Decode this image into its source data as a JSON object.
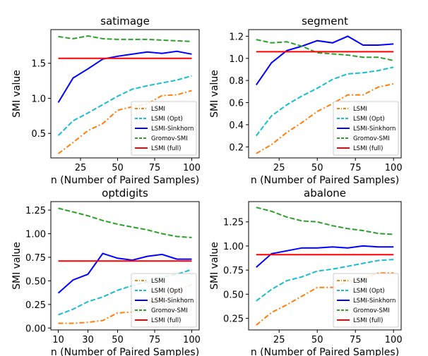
{
  "colors": {
    "LSMI": "#ff7f0e",
    "LSMI (Opt)": "#17becf",
    "LSMI-Sinkhorn": "#0000ff",
    "Gromov-SMI": "#2ca02c",
    "LSMI (full)": "#ff0000"
  },
  "chart_data": [
    {
      "type": "line",
      "title": "satimage",
      "xlabel": "n (Number of Paired Samples)",
      "ylabel": "SMI value",
      "xlim": [
        5,
        105
      ],
      "ylim": [
        0.15,
        1.98
      ],
      "xticks": [
        25,
        50,
        75,
        100
      ],
      "yticks": [
        0.5,
        1.0,
        1.5
      ],
      "ytick_labels": [
        "0.5",
        "1.0",
        "1.5"
      ],
      "x": [
        10,
        20,
        30,
        40,
        50,
        60,
        70,
        80,
        90,
        100
      ],
      "legend": "lower-right",
      "series": [
        {
          "name": "LSMI",
          "style": "dashdot",
          "values": [
            0.21,
            0.37,
            0.54,
            0.64,
            0.83,
            0.88,
            0.92,
            1.04,
            1.05,
            1.11
          ]
        },
        {
          "name": "LSMI (Opt)",
          "style": "dashed",
          "values": [
            0.47,
            0.68,
            0.79,
            0.91,
            1.03,
            1.13,
            1.18,
            1.22,
            1.26,
            1.32
          ]
        },
        {
          "name": "LSMI-Sinkhorn",
          "style": "solid",
          "values": [
            0.94,
            1.29,
            1.42,
            1.56,
            1.6,
            1.63,
            1.66,
            1.64,
            1.67,
            1.63
          ]
        },
        {
          "name": "Gromov-SMI",
          "style": "dashed",
          "values": [
            1.88,
            1.85,
            1.89,
            1.85,
            1.84,
            1.84,
            1.84,
            1.83,
            1.82,
            1.81
          ]
        },
        {
          "name": "LSMI (full)",
          "style": "solid",
          "values": [
            1.57,
            1.57,
            1.57,
            1.57,
            1.57,
            1.57,
            1.57,
            1.57,
            1.57,
            1.57
          ]
        }
      ]
    },
    {
      "type": "line",
      "title": "segment",
      "xlabel": "n (Number of Paired Samples)",
      "ylabel": "SMI value",
      "xlim": [
        5,
        105
      ],
      "ylim": [
        0.1,
        1.26
      ],
      "xticks": [
        25,
        50,
        75,
        100
      ],
      "yticks": [
        0.2,
        0.4,
        0.6,
        0.8,
        1.0,
        1.2
      ],
      "ytick_labels": [
        "0.2",
        "0.4",
        "0.6",
        "0.8",
        "1.0",
        "1.2"
      ],
      "x": [
        10,
        20,
        30,
        40,
        50,
        60,
        70,
        80,
        90,
        100
      ],
      "legend": "lower-right",
      "series": [
        {
          "name": "LSMI",
          "style": "dashdot",
          "values": [
            0.14,
            0.22,
            0.33,
            0.42,
            0.52,
            0.59,
            0.67,
            0.67,
            0.74,
            0.77
          ]
        },
        {
          "name": "LSMI (Opt)",
          "style": "dashed",
          "values": [
            0.3,
            0.48,
            0.58,
            0.66,
            0.73,
            0.81,
            0.86,
            0.87,
            0.89,
            0.92
          ]
        },
        {
          "name": "LSMI-Sinkhorn",
          "style": "solid",
          "values": [
            0.76,
            0.96,
            1.07,
            1.11,
            1.16,
            1.14,
            1.2,
            1.12,
            1.12,
            1.13
          ]
        },
        {
          "name": "Gromov-SMI",
          "style": "dashed",
          "values": [
            1.17,
            1.14,
            1.15,
            1.11,
            1.05,
            1.04,
            1.03,
            1.01,
            1.01,
            0.98
          ]
        },
        {
          "name": "LSMI (full)",
          "style": "solid",
          "values": [
            1.06,
            1.06,
            1.06,
            1.06,
            1.06,
            1.06,
            1.06,
            1.06,
            1.06,
            1.06
          ]
        }
      ]
    },
    {
      "type": "line",
      "title": "optdigits",
      "xlabel": "n (Number of Paired Samples)",
      "ylabel": "SMI value",
      "xlim": [
        5,
        105
      ],
      "ylim": [
        -0.02,
        1.34
      ],
      "xticks": [
        10,
        30,
        50,
        75,
        100
      ],
      "yticks": [
        0.0,
        0.25,
        0.5,
        0.75,
        1.0,
        1.25
      ],
      "ytick_labels": [
        "0.00",
        "0.25",
        "0.50",
        "0.75",
        "1.00",
        "1.25"
      ],
      "x": [
        10,
        20,
        30,
        40,
        50,
        60,
        70,
        80,
        90,
        100
      ],
      "legend": "lower-right",
      "series": [
        {
          "name": "LSMI",
          "style": "dashdot",
          "values": [
            0.05,
            0.05,
            0.06,
            0.08,
            0.16,
            0.17,
            0.26,
            0.33,
            0.4,
            0.46
          ]
        },
        {
          "name": "LSMI (Opt)",
          "style": "dashed",
          "values": [
            0.14,
            0.2,
            0.28,
            0.33,
            0.4,
            0.45,
            0.49,
            0.54,
            0.57,
            0.62
          ]
        },
        {
          "name": "LSMI-Sinkhorn",
          "style": "solid",
          "values": [
            0.37,
            0.51,
            0.57,
            0.79,
            0.74,
            0.72,
            0.76,
            0.78,
            0.73,
            0.73
          ]
        },
        {
          "name": "Gromov-SMI",
          "style": "dashed",
          "values": [
            1.27,
            1.23,
            1.19,
            1.14,
            1.1,
            1.07,
            1.04,
            1.0,
            0.97,
            0.96
          ]
        },
        {
          "name": "LSMI (full)",
          "style": "solid",
          "values": [
            0.71,
            0.71,
            0.71,
            0.71,
            0.71,
            0.71,
            0.71,
            0.71,
            0.71,
            0.71
          ]
        }
      ]
    },
    {
      "type": "line",
      "title": "abalone",
      "xlabel": "n (Number of Paired Samples)",
      "ylabel": "SMI value",
      "xlim": [
        5,
        105
      ],
      "ylim": [
        0.13,
        1.46
      ],
      "xticks": [
        25,
        50,
        75,
        100
      ],
      "yticks": [
        0.25,
        0.5,
        0.75,
        1.0,
        1.25
      ],
      "ytick_labels": [
        "0.25",
        "0.50",
        "0.75",
        "1.00",
        "1.25"
      ],
      "x": [
        10,
        20,
        30,
        40,
        50,
        60,
        70,
        80,
        90,
        100
      ],
      "legend": "lower-right",
      "series": [
        {
          "name": "LSMI",
          "style": "dashdot",
          "values": [
            0.18,
            0.31,
            0.39,
            0.48,
            0.57,
            0.57,
            0.63,
            0.66,
            0.72,
            0.72
          ]
        },
        {
          "name": "LSMI (Opt)",
          "style": "dashed",
          "values": [
            0.43,
            0.55,
            0.64,
            0.68,
            0.74,
            0.76,
            0.79,
            0.82,
            0.85,
            0.86
          ]
        },
        {
          "name": "LSMI-Sinkhorn",
          "style": "solid",
          "values": [
            0.78,
            0.92,
            0.95,
            0.98,
            0.98,
            0.99,
            0.98,
            1.0,
            0.99,
            0.99
          ]
        },
        {
          "name": "Gromov-SMI",
          "style": "dashed",
          "values": [
            1.4,
            1.36,
            1.3,
            1.26,
            1.25,
            1.21,
            1.18,
            1.16,
            1.13,
            1.12
          ]
        },
        {
          "name": "LSMI (full)",
          "style": "solid",
          "values": [
            0.91,
            0.91,
            0.91,
            0.91,
            0.91,
            0.91,
            0.91,
            0.91,
            0.91,
            0.91
          ]
        }
      ]
    }
  ]
}
